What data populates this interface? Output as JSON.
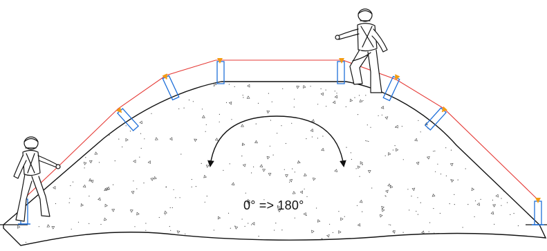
{
  "diagram": {
    "angle_label": "0° => 180°",
    "colors": {
      "outline": "#111111",
      "lifeline": "#e53935",
      "anchor": "#f39c12",
      "post": "#1e6fd9",
      "stipple": "#444444"
    },
    "icons": {
      "worker": "climber-with-helmet-harness-icon",
      "anchor": "anchor-post-icon",
      "arrow": "curved-arrow-icon"
    }
  }
}
